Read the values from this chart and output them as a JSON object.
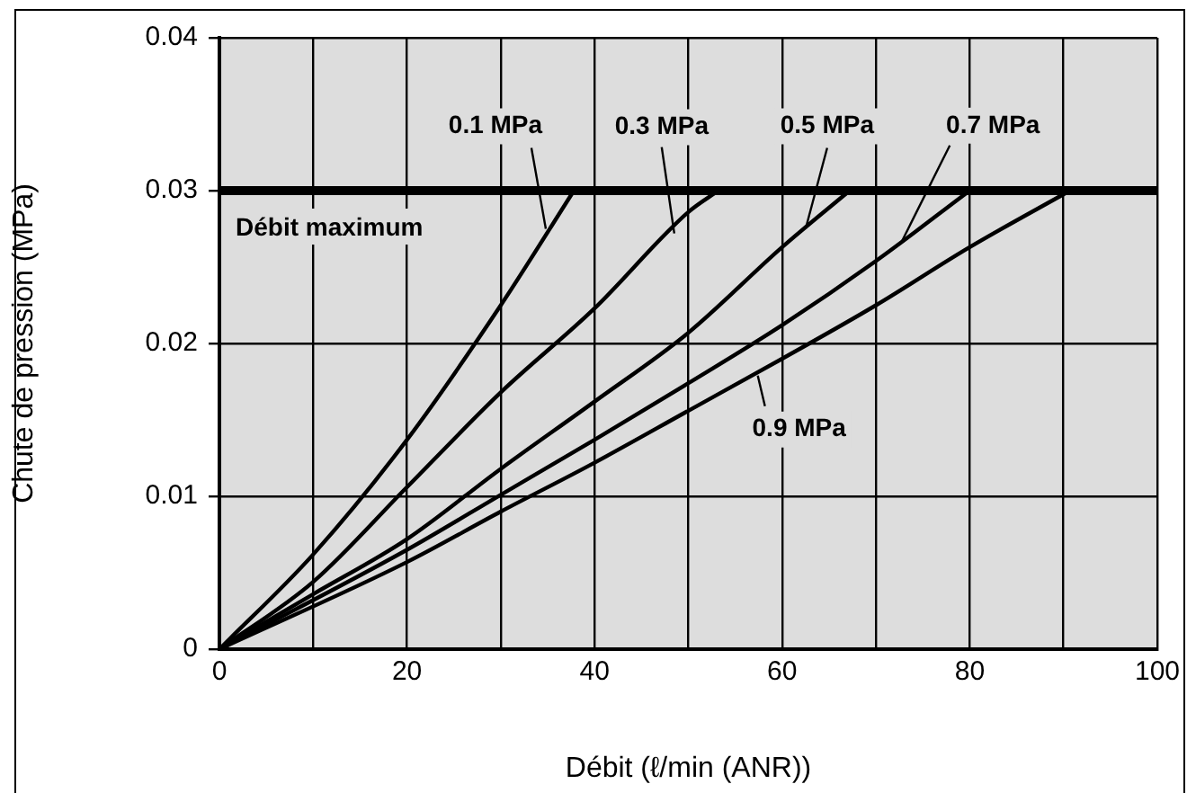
{
  "chart_data": {
    "type": "line",
    "xlabel": "Débit (ℓ/min (ANR))",
    "ylabel": "Chute de pression (MPa)",
    "xlim": [
      0,
      100
    ],
    "ylim": [
      0,
      0.04
    ],
    "xticks": [
      0,
      {
        "value": 10,
        "label": null
      },
      20,
      {
        "value": 30,
        "label": null
      },
      40,
      {
        "value": 50,
        "label": null
      },
      60,
      {
        "value": 70,
        "label": null
      },
      80,
      {
        "value": 90,
        "label": null
      },
      100
    ],
    "yticks": [
      0,
      0.01,
      0.02,
      0.03,
      0.04
    ],
    "grid": true,
    "legend": false,
    "marker": "none",
    "line_style": "solid",
    "series": [
      {
        "color": "#000000",
        "x": [
          0,
          10,
          20,
          30,
          37.8
        ],
        "values": [
          0,
          0.0062,
          0.0137,
          0.0225,
          0.03
        ]
      },
      {
        "color": "#000000",
        "x": [
          0,
          10,
          20,
          30,
          40,
          50,
          53.2
        ],
        "values": [
          0,
          0.0044,
          0.0106,
          0.0168,
          0.0223,
          0.0286,
          0.03
        ]
      },
      {
        "color": "#000000",
        "x": [
          0,
          10,
          20,
          30,
          40,
          50,
          60,
          67.2
        ],
        "values": [
          0,
          0.0036,
          0.0072,
          0.0118,
          0.0162,
          0.0207,
          0.0263,
          0.03
        ]
      },
      {
        "color": "#000000",
        "x": [
          0,
          20,
          30,
          40,
          50,
          60,
          70,
          80
        ],
        "values": [
          0,
          0.0065,
          0.0101,
          0.0137,
          0.0174,
          0.0212,
          0.0254,
          0.03
        ]
      },
      {
        "color": "#000000",
        "x": [
          0,
          20,
          30,
          40,
          50,
          60,
          70,
          80,
          90.7
        ],
        "values": [
          0,
          0.0057,
          0.009,
          0.0122,
          0.0156,
          0.019,
          0.0225,
          0.0263,
          0.03
        ]
      }
    ],
    "ref_lines": [
      {
        "axis": "y",
        "value": 0.03,
        "label": "Débit maximum",
        "color": "#000000"
      }
    ],
    "annotations": [
      {
        "text": "0.1 MPa",
        "x": 34.8,
        "y": 0.0275
      },
      {
        "text": "0.3 MPa",
        "x": 48.5,
        "y": 0.0272
      },
      {
        "text": "0.5 MPa",
        "x": 62.5,
        "y": 0.0275
      },
      {
        "text": "0.7 MPa",
        "x": 72.7,
        "y": 0.0266
      },
      {
        "text": "0.9 MPa",
        "x": 57.4,
        "y": 0.0179
      }
    ]
  }
}
